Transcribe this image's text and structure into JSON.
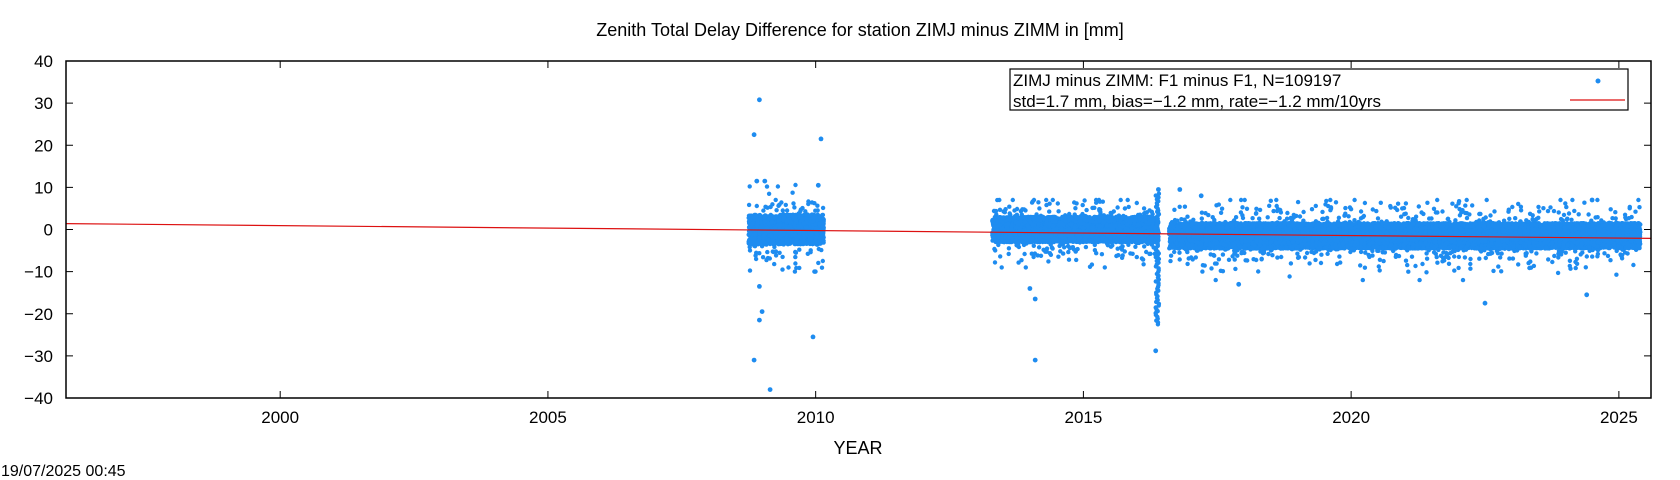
{
  "chart_data": {
    "type": "scatter",
    "title": "Zenith Total Delay Difference for station ZIMJ minus ZIMM in [mm]",
    "xlabel": "YEAR",
    "ylabel": "",
    "xlim": [
      1996.0,
      2025.6
    ],
    "ylim": [
      -40,
      40
    ],
    "x_ticks": [
      2000,
      2005,
      2010,
      2015,
      2020,
      2025
    ],
    "x_tick_labels": [
      "2000",
      "2005",
      "2010",
      "2015",
      "2020",
      "2025"
    ],
    "y_ticks": [
      -40,
      -30,
      -20,
      -10,
      0,
      10,
      20,
      30,
      40
    ],
    "y_tick_labels": [
      "−40",
      "−30",
      "−20",
      "−10",
      "0",
      "10",
      "20",
      "30",
      "40"
    ],
    "grid": false,
    "legend_position": "top-right",
    "legend": [
      {
        "label": "ZIMJ minus ZIMM: F1 minus F1, N=109197",
        "marker": "point",
        "color": "#1e8cf0"
      },
      {
        "label": "std=1.7 mm, bias=−1.2 mm, rate=−1.2 mm/10yrs",
        "marker": "line",
        "color": "#dd1111"
      }
    ],
    "footer": "19/07/2025 00:45",
    "series": [
      {
        "type": "scatter",
        "color": "#1e8cf0",
        "segments": [
          {
            "x_start": 2008.75,
            "x_end": 2010.15,
            "core_min": -3.5,
            "core_max": 3.5,
            "spread_min": -10,
            "spread_max": 11
          },
          {
            "x_start": 2013.3,
            "x_end": 2016.4,
            "core_min": -3.0,
            "core_max": 3.0,
            "spread_min": -9,
            "spread_max": 7
          },
          {
            "x_start": 2016.6,
            "x_end": 2025.4,
            "core_min": -4.5,
            "core_max": 1.5,
            "spread_min": -12,
            "spread_max": 7
          }
        ],
        "outliers": [
          {
            "x": 2008.95,
            "y": 30.8
          },
          {
            "x": 2008.85,
            "y": 22.5
          },
          {
            "x": 2010.1,
            "y": 21.5
          },
          {
            "x": 2008.9,
            "y": 11.5
          },
          {
            "x": 2009.05,
            "y": 11.5
          },
          {
            "x": 2010.05,
            "y": 10.5
          },
          {
            "x": 2008.95,
            "y": -13.5
          },
          {
            "x": 2009.0,
            "y": -19.5
          },
          {
            "x": 2008.95,
            "y": -21.5
          },
          {
            "x": 2008.85,
            "y": -31.0
          },
          {
            "x": 2009.15,
            "y": -38.0
          },
          {
            "x": 2009.95,
            "y": -25.5
          },
          {
            "x": 2014.0,
            "y": -14.0
          },
          {
            "x": 2014.1,
            "y": -16.5
          },
          {
            "x": 2014.1,
            "y": -31.0
          },
          {
            "x": 2016.35,
            "y": -28.8
          },
          {
            "x": 2016.4,
            "y": 9.5
          },
          {
            "x": 2016.8,
            "y": 9.5
          },
          {
            "x": 2017.2,
            "y": 8.0
          },
          {
            "x": 2017.9,
            "y": -13.0
          },
          {
            "x": 2022.5,
            "y": -17.5
          },
          {
            "x": 2024.4,
            "y": -15.5
          },
          {
            "x": 2024.5,
            "y": 7.0
          }
        ],
        "dense_spikes": [
          {
            "x": 2016.38,
            "y_min": -22.5,
            "y_max": 8.5
          }
        ]
      },
      {
        "type": "line",
        "color": "#dd1111",
        "x": [
          1996.0,
          2025.6
        ],
        "y": [
          1.4,
          -2.1
        ]
      }
    ]
  }
}
